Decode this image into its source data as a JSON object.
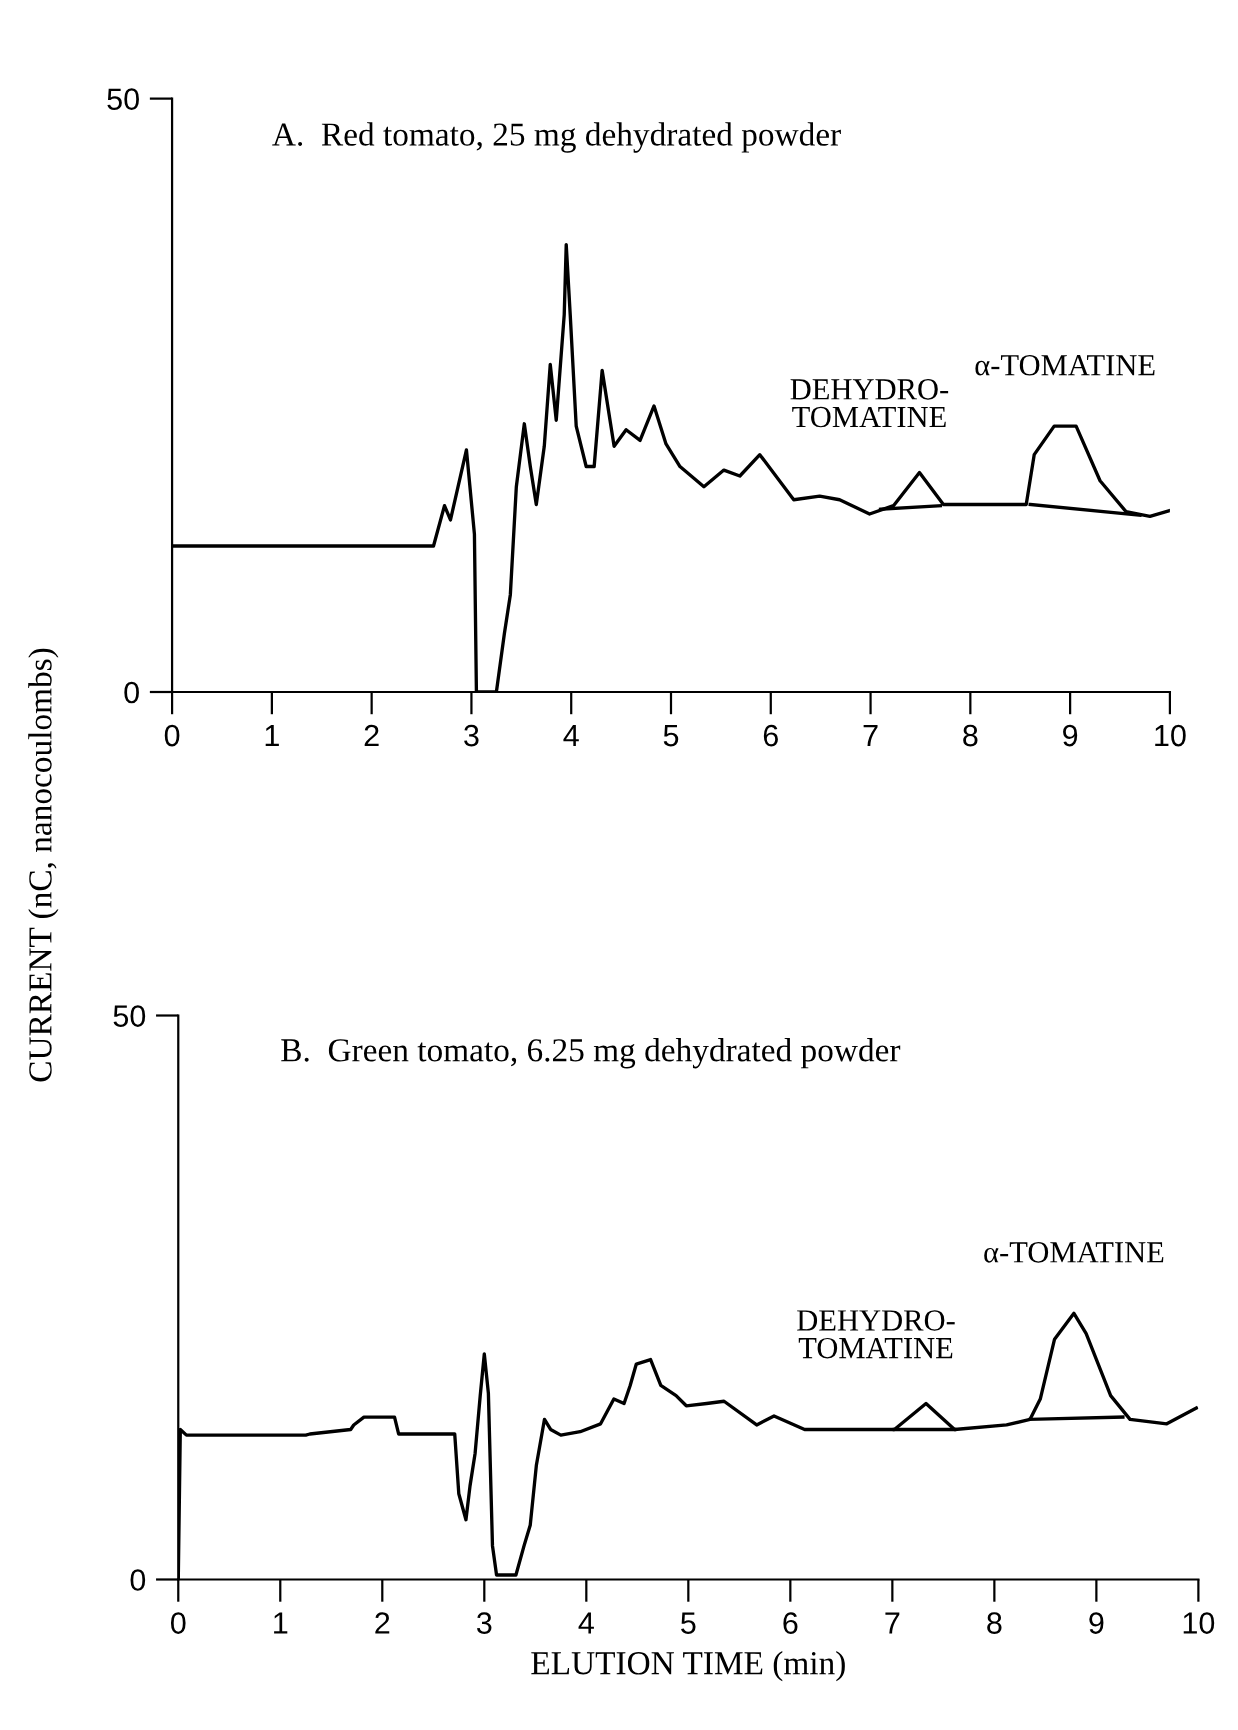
{
  "chart_data": [
    {
      "type": "line",
      "title": "A.  Red tomato, 25 mg dehydrated powder",
      "ylabel": "CURRENT (nC, nanocoulombs)",
      "xlim": [
        0,
        10
      ],
      "ylim": [
        0,
        50
      ],
      "xticks": [
        0,
        1,
        2,
        3,
        4,
        5,
        6,
        7,
        8,
        9,
        10
      ],
      "yticks": [
        0,
        50
      ],
      "grid": false,
      "legend": false,
      "annotations": [
        {
          "text": "DEHYDRO-\nTOMATINE",
          "x": 7.49,
          "y": 18.5
        },
        {
          "text": "α-TOMATINE",
          "x": 8.95,
          "y": 22.4
        }
      ],
      "series": [
        {
          "color": "#000000",
          "x": [
            0,
            2.62,
            2.73,
            2.79,
            2.95,
            3.03,
            3.05,
            3.25,
            3.33,
            3.39,
            3.45,
            3.53,
            3.59,
            3.65,
            3.73,
            3.79,
            3.85,
            3.93,
            3.95,
            3.99,
            4.05,
            4.15,
            4.23,
            4.31,
            4.43,
            4.55,
            4.69,
            4.83,
            4.95,
            5.09,
            5.33,
            5.53,
            5.69,
            5.89,
            6.23,
            6.49,
            6.69,
            6.99,
            7.23,
            7.49,
            7.73,
            8.56,
            8.64,
            8.84,
            9.06,
            9.3,
            9.56,
            9.8,
            10
          ],
          "values": [
            12.3,
            12.3,
            15.7,
            14.5,
            20.4,
            13.3,
            0,
            0,
            4.9,
            8.2,
            17.3,
            22.6,
            19,
            15.8,
            20.7,
            27.6,
            22.9,
            31.8,
            37.7,
            31.8,
            22.4,
            19,
            19,
            27.1,
            20.7,
            22.1,
            21.2,
            24.1,
            20.9,
            19,
            17.3,
            18.7,
            18.2,
            20,
            16.2,
            16.5,
            16.2,
            15,
            15.7,
            18.5,
            15.8,
            15.8,
            20,
            22.4,
            22.4,
            17.8,
            15.2,
            14.8,
            15.3
          ]
        },
        {
          "color": "#000000",
          "x": [
            7.1,
            7.7
          ],
          "values": [
            15.4,
            15.7
          ]
        },
        {
          "color": "#000000",
          "x": [
            8.6,
            9.7
          ],
          "values": [
            15.8,
            14.9
          ]
        }
      ]
    },
    {
      "type": "line",
      "title": "B.  Green tomato, 6.25 mg dehydrated powder",
      "xlabel": "ELUTION TIME (min)",
      "xlim": [
        0,
        10
      ],
      "ylim": [
        0,
        50
      ],
      "xticks": [
        0,
        1,
        2,
        3,
        4,
        5,
        6,
        7,
        8,
        9,
        10
      ],
      "yticks": [
        0,
        50
      ],
      "grid": false,
      "legend": false,
      "annotations": [
        {
          "text": "DEHYDRO-\nTOMATINE",
          "x": 7.33,
          "y": 15.6
        },
        {
          "text": "α-TOMATINE",
          "x": 8.78,
          "y": 23.6
        }
      ],
      "series": [
        {
          "color": "#000000",
          "x": [
            0,
            0.02,
            0.08,
            1.25,
            1.29,
            1.69,
            1.72,
            1.82,
            2.12,
            2.16,
            2.71,
            2.75,
            2.82,
            2.86,
            2.91,
            2.96,
            3.0,
            3.04,
            3.08,
            3.12,
            3.31,
            3.39,
            3.45,
            3.51,
            3.59,
            3.65,
            3.75,
            3.94,
            4.14,
            4.27,
            4.37,
            4.43,
            4.49,
            4.63,
            4.73,
            4.88,
            4.98,
            5.18,
            5.35,
            5.67,
            5.84,
            6.14,
            7.02,
            7.33,
            7.61,
            8.12,
            8.35,
            8.45,
            8.59,
            8.78,
            8.9,
            9.14,
            9.33,
            9.69,
            9.98
          ],
          "values": [
            0,
            13.3,
            12.8,
            12.8,
            12.9,
            13.3,
            13.7,
            14.4,
            14.4,
            12.9,
            12.9,
            7.6,
            5.3,
            8.3,
            11.2,
            16.3,
            20,
            16.5,
            3,
            0.4,
            0.4,
            3,
            4.8,
            10.1,
            14.2,
            13.3,
            12.8,
            13.1,
            13.8,
            16,
            15.6,
            17.2,
            19.1,
            19.5,
            17.2,
            16.3,
            15.4,
            15.6,
            15.8,
            13.7,
            14.5,
            13.3,
            13.3,
            15.6,
            13.3,
            13.7,
            14.2,
            16,
            21.3,
            23.6,
            21.8,
            16.3,
            14.2,
            13.8,
            15.2
          ]
        },
        {
          "color": "#000000",
          "x": [
            7.02,
            7.61
          ],
          "values": [
            13.3,
            13.3
          ]
        },
        {
          "color": "#000000",
          "x": [
            8.35,
            9.26
          ],
          "values": [
            14.2,
            14.4
          ]
        }
      ]
    }
  ]
}
